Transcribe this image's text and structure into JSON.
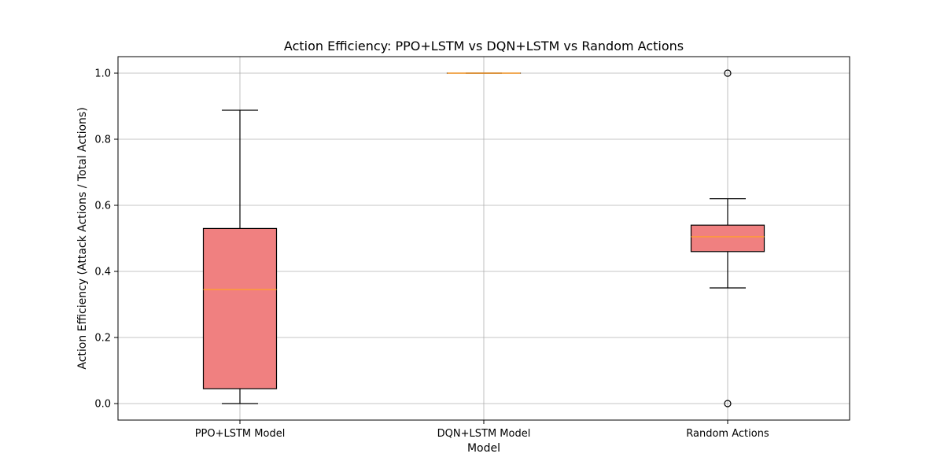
{
  "chart_data": {
    "type": "box",
    "title": "Action Efficiency: PPO+LSTM vs DQN+LSTM vs Random Actions",
    "xlabel": "Model",
    "ylabel": "Action Efficiency (Attack Actions / Total Actions)",
    "ylim": [
      -0.05,
      1.05
    ],
    "yticks": [
      0.0,
      0.2,
      0.4,
      0.6,
      0.8,
      1.0
    ],
    "ytick_labels": [
      "0.0",
      "0.2",
      "0.4",
      "0.6",
      "0.8",
      "1.0"
    ],
    "grid": true,
    "categories": [
      "PPO+LSTM Model",
      "DQN+LSTM Model",
      "Random Actions"
    ],
    "boxes": [
      {
        "name": "PPO+LSTM Model",
        "whisker_low": 0.0,
        "q1": 0.045,
        "median": 0.345,
        "q3": 0.53,
        "whisker_high": 0.888,
        "outliers": []
      },
      {
        "name": "DQN+LSTM Model",
        "whisker_low": 1.0,
        "q1": 1.0,
        "median": 1.0,
        "q3": 1.0,
        "whisker_high": 1.0,
        "outliers": []
      },
      {
        "name": "Random Actions",
        "whisker_low": 0.35,
        "q1": 0.46,
        "median": 0.505,
        "q3": 0.54,
        "whisker_high": 0.62,
        "outliers": [
          0.0,
          1.0
        ]
      }
    ],
    "colors": {
      "box_fill": "#f08080",
      "median": "#ff9f2e",
      "edge": "#000000",
      "grid": "#b0b0b0"
    }
  }
}
